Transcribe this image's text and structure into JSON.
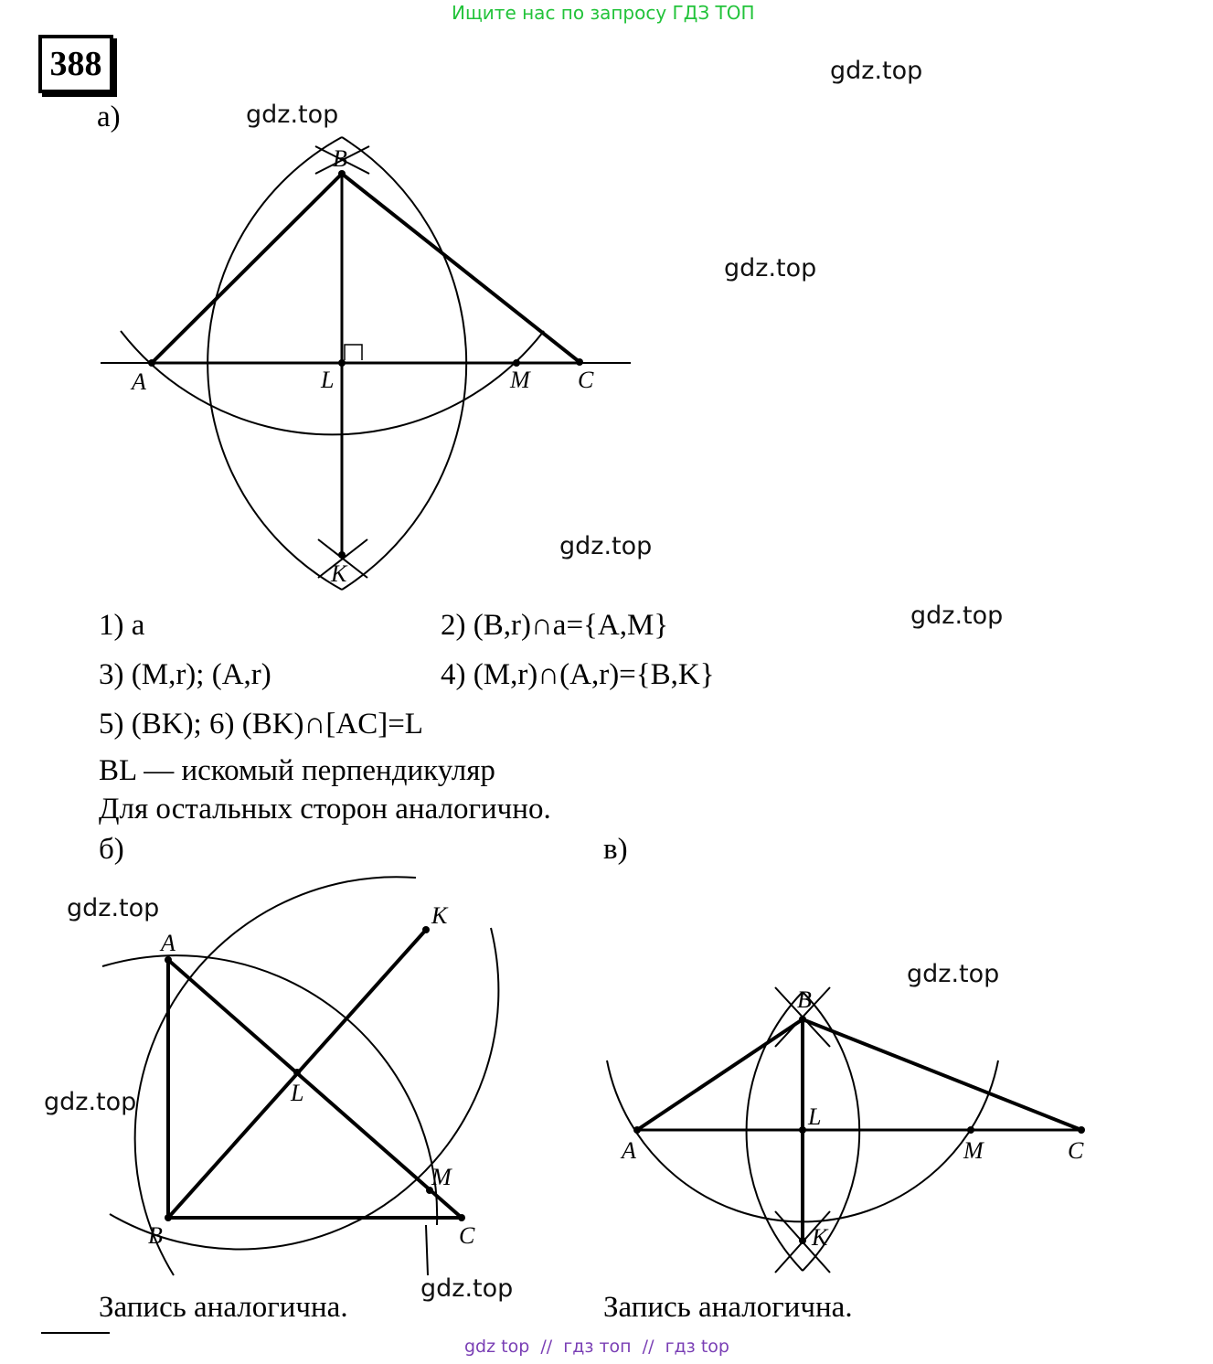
{
  "banner": "Ищите нас по запросу ГДЗ ТОП",
  "problem_number": "388",
  "watermark": "gdz.top",
  "part_a": {
    "label": "а)",
    "points": {
      "A": "A",
      "B": "B",
      "C": "C",
      "L": "L",
      "M": "M",
      "K": "K"
    },
    "steps": [
      "1) a",
      "2) (B,r)∩a={A,M}",
      "3) (M,r); (A,r)",
      "4) (M,r)∩(A,r)={B,K}",
      "5) (BK);  6) (BK)∩[AC]=L"
    ],
    "conclusion": "BL — искомый перпендикуляр",
    "note": "Для остальных сторон аналогично."
  },
  "part_b": {
    "label": "б)",
    "points": {
      "A": "A",
      "B": "B",
      "C": "C",
      "L": "L",
      "M": "M",
      "K": "K"
    },
    "note": "Запись аналогична."
  },
  "part_c": {
    "label": "в)",
    "points": {
      "A": "A",
      "B": "B",
      "C": "C",
      "L": "L",
      "M": "M",
      "K": "K"
    },
    "note": "Запись аналогична."
  },
  "footer": "gdz top  //  гдз топ  //  гдз top"
}
